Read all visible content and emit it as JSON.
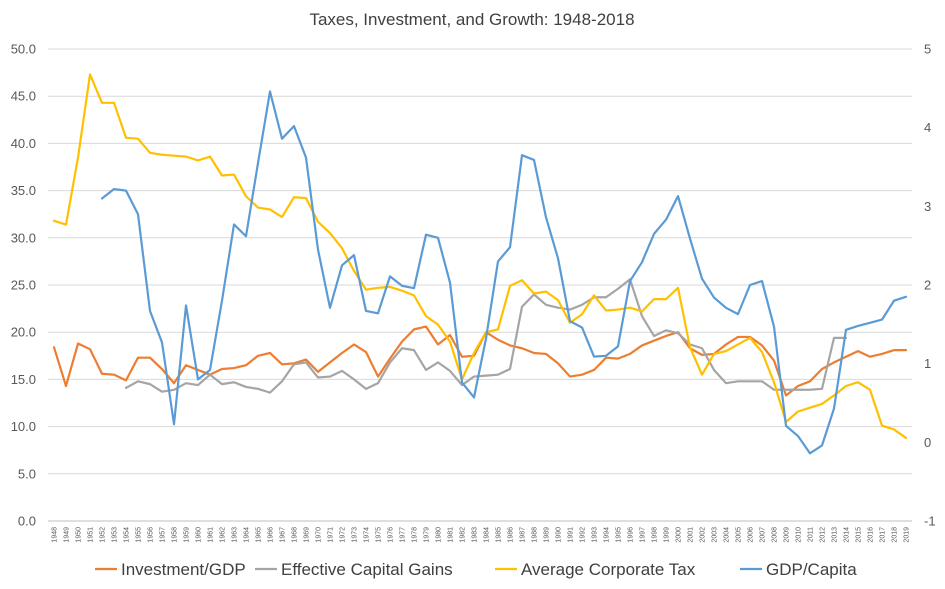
{
  "chart_data": {
    "type": "line",
    "title": "Taxes, Investment, and Growth: 1948-2018",
    "x": [
      1948,
      1949,
      1950,
      1951,
      1952,
      1953,
      1954,
      1955,
      1956,
      1957,
      1958,
      1959,
      1960,
      1961,
      1962,
      1963,
      1964,
      1965,
      1966,
      1967,
      1968,
      1969,
      1970,
      1971,
      1972,
      1973,
      1974,
      1975,
      1976,
      1977,
      1978,
      1979,
      1980,
      1981,
      1982,
      1983,
      1984,
      1985,
      1986,
      1987,
      1988,
      1989,
      1990,
      1991,
      1992,
      1993,
      1994,
      1995,
      1996,
      1997,
      1998,
      1999,
      2000,
      2001,
      2002,
      2003,
      2004,
      2005,
      2006,
      2007,
      2008,
      2009,
      2010,
      2011,
      2012,
      2013,
      2014,
      2015,
      2016,
      2017,
      2018,
      2019
    ],
    "y_left_ticks": [
      "0.0",
      "5.0",
      "10.0",
      "15.0",
      "20.0",
      "25.0",
      "30.0",
      "35.0",
      "40.0",
      "45.0",
      "50.0"
    ],
    "y_right_ticks": [
      "-1",
      "0",
      "1",
      "2",
      "3",
      "4",
      "5"
    ],
    "ylim_left": [
      0,
      50
    ],
    "ylim_right": [
      -1,
      5
    ],
    "grid": true,
    "legend_position": "bottom",
    "series": [
      {
        "name": "Investment/GDP",
        "axis": "left",
        "color": "#ED7D31",
        "values": [
          18.4,
          14.3,
          18.8,
          18.2,
          15.6,
          15.5,
          14.9,
          17.3,
          17.3,
          16.1,
          14.6,
          16.5,
          16.0,
          15.5,
          16.1,
          16.2,
          16.5,
          17.5,
          17.8,
          16.6,
          16.7,
          17.1,
          15.8,
          16.8,
          17.8,
          18.7,
          17.9,
          15.3,
          17.2,
          19.0,
          20.3,
          20.6,
          18.7,
          19.7,
          17.4,
          17.5,
          20.0,
          19.2,
          18.6,
          18.3,
          17.8,
          17.7,
          16.7,
          15.3,
          15.5,
          16.0,
          17.3,
          17.2,
          17.7,
          18.6,
          19.1,
          19.6,
          20.0,
          18.3,
          17.6,
          17.7,
          18.7,
          19.5,
          19.5,
          18.6,
          17.0,
          13.3,
          14.3,
          14.8,
          16.1,
          16.8,
          17.4,
          18.0,
          17.4,
          17.7,
          18.1,
          18.1
        ]
      },
      {
        "name": "Effective Capital Gains",
        "axis": "left",
        "color": "#A5A5A5",
        "values": [
          null,
          null,
          null,
          null,
          null,
          null,
          14.1,
          14.8,
          14.5,
          13.7,
          13.9,
          14.6,
          14.4,
          15.5,
          14.5,
          14.7,
          14.2,
          14.0,
          13.6,
          14.8,
          16.6,
          16.8,
          15.2,
          15.3,
          15.9,
          15.0,
          14.0,
          14.6,
          16.8,
          18.3,
          18.1,
          16.0,
          16.8,
          15.9,
          14.4,
          15.3,
          15.4,
          15.5,
          16.1,
          22.7,
          24.0,
          22.9,
          22.6,
          22.4,
          22.9,
          23.7,
          23.7,
          24.6,
          25.6,
          21.7,
          19.6,
          20.2,
          19.9,
          18.7,
          18.3,
          16.0,
          14.6,
          14.8,
          14.8,
          14.8,
          13.9,
          13.9,
          13.9,
          13.9,
          14.0,
          19.4,
          19.4,
          null,
          null,
          null,
          null,
          null
        ]
      },
      {
        "name": "Average Corporate Tax",
        "axis": "left",
        "color": "#FFC000",
        "values": [
          31.8,
          31.4,
          38.5,
          47.3,
          44.3,
          44.3,
          40.6,
          40.5,
          39.0,
          38.8,
          38.7,
          38.6,
          38.2,
          38.6,
          36.6,
          36.7,
          34.4,
          33.2,
          33.0,
          32.2,
          34.3,
          34.2,
          31.7,
          30.5,
          28.9,
          26.5,
          24.5,
          24.7,
          24.8,
          24.4,
          23.9,
          21.7,
          20.8,
          19.0,
          15.0,
          17.8,
          20.0,
          20.3,
          24.9,
          25.5,
          24.1,
          24.3,
          23.4,
          21.0,
          21.9,
          23.9,
          22.3,
          22.4,
          22.6,
          22.2,
          23.5,
          23.5,
          24.7,
          18.4,
          15.5,
          17.7,
          18.0,
          18.7,
          19.4,
          17.9,
          14.7,
          10.5,
          11.6,
          12.0,
          12.4,
          13.3,
          14.3,
          14.7,
          13.9,
          10.1,
          9.7,
          8.8
        ]
      },
      {
        "name": "GDP/Capita",
        "axis": "right",
        "color": "#5B9BD5",
        "values": [
          null,
          null,
          null,
          null,
          3.1,
          3.22,
          3.2,
          2.9,
          1.67,
          1.27,
          0.23,
          1.74,
          0.8,
          0.92,
          1.8,
          2.77,
          2.62,
          3.55,
          4.46,
          3.86,
          4.02,
          3.62,
          2.45,
          1.71,
          2.25,
          2.38,
          1.67,
          1.64,
          2.11,
          1.99,
          1.96,
          2.64,
          2.6,
          2.03,
          0.76,
          0.57,
          1.32,
          2.3,
          2.48,
          3.65,
          3.59,
          2.86,
          2.34,
          1.54,
          1.46,
          1.09,
          1.1,
          1.22,
          2.05,
          2.29,
          2.65,
          2.83,
          3.13,
          2.59,
          2.08,
          1.84,
          1.71,
          1.63,
          2.0,
          2.05,
          1.47,
          0.21,
          0.08,
          -0.14,
          -0.04,
          0.43,
          1.43,
          1.48,
          1.52,
          1.56,
          1.8,
          1.85
        ]
      }
    ]
  }
}
